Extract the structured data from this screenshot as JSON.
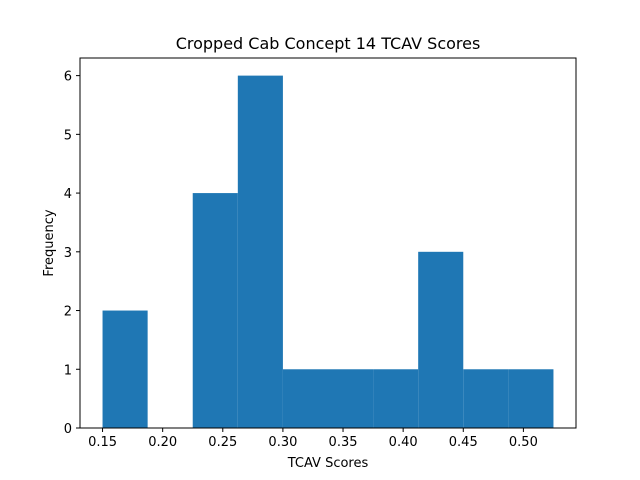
{
  "chart_data": {
    "type": "bar",
    "title": "Cropped Cab Concept 14 TCAV Scores",
    "xlabel": "TCAV Scores",
    "ylabel": "Frequency",
    "bin_edges": [
      0.15,
      0.1875,
      0.225,
      0.2625,
      0.3,
      0.3375,
      0.375,
      0.4125,
      0.45,
      0.4875,
      0.525
    ],
    "values": [
      2,
      0,
      4,
      6,
      1,
      1,
      1,
      3,
      1,
      1
    ],
    "xlim": [
      0.13125,
      0.54375
    ],
    "ylim": [
      0,
      6.3
    ],
    "xticks": [
      0.15,
      0.2,
      0.25,
      0.3,
      0.35,
      0.4,
      0.45,
      0.5
    ],
    "xtick_labels": [
      "0.15",
      "0.20",
      "0.25",
      "0.30",
      "0.35",
      "0.40",
      "0.45",
      "0.50"
    ],
    "yticks": [
      0,
      1,
      2,
      3,
      4,
      5,
      6
    ],
    "ytick_labels": [
      "0",
      "1",
      "2",
      "3",
      "4",
      "5",
      "6"
    ],
    "bar_color": "#1f77b4",
    "grid": false
  }
}
